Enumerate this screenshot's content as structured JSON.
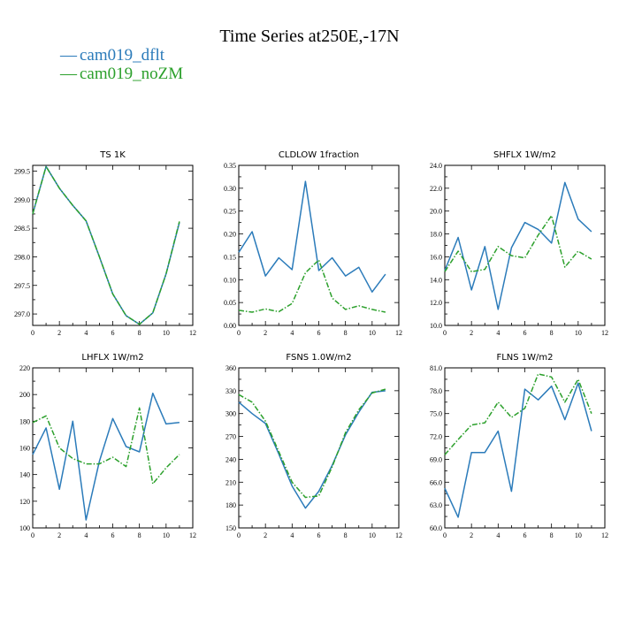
{
  "figure": {
    "title": "Time Series at250E,-17N"
  },
  "colors": {
    "dflt": "#2b7bba",
    "noZM": "#2ca02c"
  },
  "legend": [
    {
      "symbol": "—",
      "label": "cam019_dflt",
      "color": "#2b7bba"
    },
    {
      "symbol": "—",
      "label": "cam019_noZM",
      "color": "#2ca02c"
    }
  ],
  "chart_data": [
    {
      "type": "line",
      "title": "TS   1K",
      "x": [
        0,
        1,
        2,
        3,
        4,
        5,
        6,
        7,
        8,
        9,
        10,
        11
      ],
      "xlim": [
        0,
        12
      ],
      "xticks": [
        0,
        2,
        4,
        6,
        8,
        10,
        12
      ],
      "xtick_labels": [
        "0",
        "2",
        "4",
        "6",
        "8",
        "10",
        "12"
      ],
      "ylim": [
        296.8,
        299.6
      ],
      "yticks": [
        297.0,
        297.5,
        298.0,
        298.5,
        299.0,
        299.5
      ],
      "ytick_labels": [
        "297.0",
        "297.5",
        "298.0",
        "298.5",
        "299.0",
        "299.5"
      ],
      "series": [
        {
          "name": "cam019_dflt",
          "values": [
            298.75,
            299.58,
            299.2,
            298.9,
            298.63,
            298.0,
            297.35,
            296.97,
            296.82,
            297.02,
            297.7,
            298.6
          ]
        },
        {
          "name": "cam019_noZM",
          "values": [
            298.75,
            299.58,
            299.2,
            298.9,
            298.63,
            298.0,
            297.35,
            296.97,
            296.82,
            297.02,
            297.7,
            298.62
          ]
        }
      ]
    },
    {
      "type": "line",
      "title": "CLDLOW   1fraction",
      "x": [
        0,
        1,
        2,
        3,
        4,
        5,
        6,
        7,
        8,
        9,
        10,
        11
      ],
      "xlim": [
        0,
        12
      ],
      "xticks": [
        0,
        2,
        4,
        6,
        8,
        10,
        12
      ],
      "xtick_labels": [
        "0",
        "2",
        "4",
        "6",
        "8",
        "10",
        "12"
      ],
      "ylim": [
        0,
        0.35
      ],
      "yticks": [
        0,
        0.05,
        0.1,
        0.15,
        0.2,
        0.25,
        0.3,
        0.35
      ],
      "ytick_labels": [
        "0.00",
        "0.05",
        "0.10",
        "0.15",
        "0.20",
        "0.25",
        "0.30",
        "0.35"
      ],
      "series": [
        {
          "name": "cam019_dflt",
          "values": [
            0.16,
            0.205,
            0.108,
            0.148,
            0.122,
            0.315,
            0.12,
            0.148,
            0.108,
            0.127,
            0.073,
            0.112
          ]
        },
        {
          "name": "cam019_noZM",
          "values": [
            0.033,
            0.029,
            0.036,
            0.03,
            0.048,
            0.115,
            0.143,
            0.06,
            0.035,
            0.043,
            0.035,
            0.029
          ]
        }
      ]
    },
    {
      "type": "line",
      "title": "SHFLX   1W/m2",
      "x": [
        0,
        1,
        2,
        3,
        4,
        5,
        6,
        7,
        8,
        9,
        10,
        11
      ],
      "xlim": [
        0,
        12
      ],
      "xticks": [
        0,
        2,
        4,
        6,
        8,
        10,
        12
      ],
      "xtick_labels": [
        "0",
        "2",
        "4",
        "6",
        "8",
        "10",
        "12"
      ],
      "ylim": [
        10,
        24
      ],
      "yticks": [
        10,
        12,
        14,
        16,
        18,
        20,
        22,
        24
      ],
      "ytick_labels": [
        "10.0",
        "12.0",
        "14.0",
        "16.0",
        "18.0",
        "20.0",
        "22.0",
        "24.0"
      ],
      "series": [
        {
          "name": "cam019_dflt",
          "values": [
            14.8,
            17.7,
            13.1,
            16.9,
            11.4,
            16.8,
            19.0,
            18.4,
            17.2,
            22.5,
            19.3,
            18.2
          ]
        },
        {
          "name": "cam019_noZM",
          "values": [
            14.7,
            16.5,
            14.7,
            14.9,
            16.9,
            16.1,
            15.9,
            17.9,
            19.6,
            15.1,
            16.5,
            15.8
          ]
        }
      ]
    },
    {
      "type": "line",
      "title": "LHFLX   1W/m2",
      "x": [
        0,
        1,
        2,
        3,
        4,
        5,
        6,
        7,
        8,
        9,
        10,
        11
      ],
      "xlim": [
        0,
        12
      ],
      "xticks": [
        0,
        2,
        4,
        6,
        8,
        10,
        12
      ],
      "xtick_labels": [
        "0",
        "2",
        "4",
        "6",
        "8",
        "10",
        "12"
      ],
      "ylim": [
        100,
        220
      ],
      "yticks": [
        100,
        120,
        140,
        160,
        180,
        200,
        220
      ],
      "ytick_labels": [
        "100",
        "120",
        "140",
        "160",
        "180",
        "200",
        "220"
      ],
      "series": [
        {
          "name": "cam019_dflt",
          "values": [
            155,
            175,
            129,
            180,
            106,
            150,
            182,
            161,
            157,
            201,
            178,
            179
          ]
        },
        {
          "name": "cam019_noZM",
          "values": [
            179,
            184,
            160,
            152,
            148,
            148,
            153,
            146,
            190,
            133,
            145,
            155
          ]
        }
      ]
    },
    {
      "type": "line",
      "title": "FSNS   1.0W/m2",
      "x": [
        0,
        1,
        2,
        3,
        4,
        5,
        6,
        7,
        8,
        9,
        10,
        11
      ],
      "xlim": [
        0,
        12
      ],
      "xticks": [
        0,
        2,
        4,
        6,
        8,
        10,
        12
      ],
      "xtick_labels": [
        "0",
        "2",
        "4",
        "6",
        "8",
        "10",
        "12"
      ],
      "ylim": [
        150,
        360
      ],
      "yticks": [
        150,
        180,
        210,
        240,
        270,
        300,
        330,
        360
      ],
      "ytick_labels": [
        "150",
        "180",
        "210",
        "240",
        "270",
        "300",
        "330",
        "360"
      ],
      "series": [
        {
          "name": "cam019_dflt",
          "values": [
            315,
            300,
            287,
            247,
            205,
            176,
            198,
            232,
            272,
            302,
            328,
            330
          ]
        },
        {
          "name": "cam019_noZM",
          "values": [
            325,
            315,
            290,
            250,
            210,
            190,
            192,
            230,
            275,
            305,
            327,
            332
          ]
        }
      ]
    },
    {
      "type": "line",
      "title": "FLNS   1W/m2",
      "x": [
        0,
        1,
        2,
        3,
        4,
        5,
        6,
        7,
        8,
        9,
        10,
        11
      ],
      "xlim": [
        0,
        12
      ],
      "xticks": [
        0,
        2,
        4,
        6,
        8,
        10,
        12
      ],
      "xtick_labels": [
        "0",
        "2",
        "4",
        "6",
        "8",
        "10",
        "12"
      ],
      "ylim": [
        60,
        81
      ],
      "yticks": [
        60,
        63,
        66,
        69,
        72,
        75,
        78,
        81
      ],
      "ytick_labels": [
        "60.0",
        "63.0",
        "66.0",
        "69.0",
        "72.0",
        "75.0",
        "78.0",
        "81.0"
      ],
      "series": [
        {
          "name": "cam019_dflt",
          "values": [
            65.2,
            61.4,
            69.9,
            69.9,
            72.7,
            64.8,
            78.2,
            76.8,
            78.6,
            74.2,
            79.0,
            72.7
          ]
        },
        {
          "name": "cam019_noZM",
          "values": [
            69.6,
            71.6,
            73.5,
            73.8,
            76.5,
            74.5,
            75.7,
            80.2,
            79.8,
            76.5,
            79.5,
            75.0
          ]
        }
      ]
    }
  ]
}
